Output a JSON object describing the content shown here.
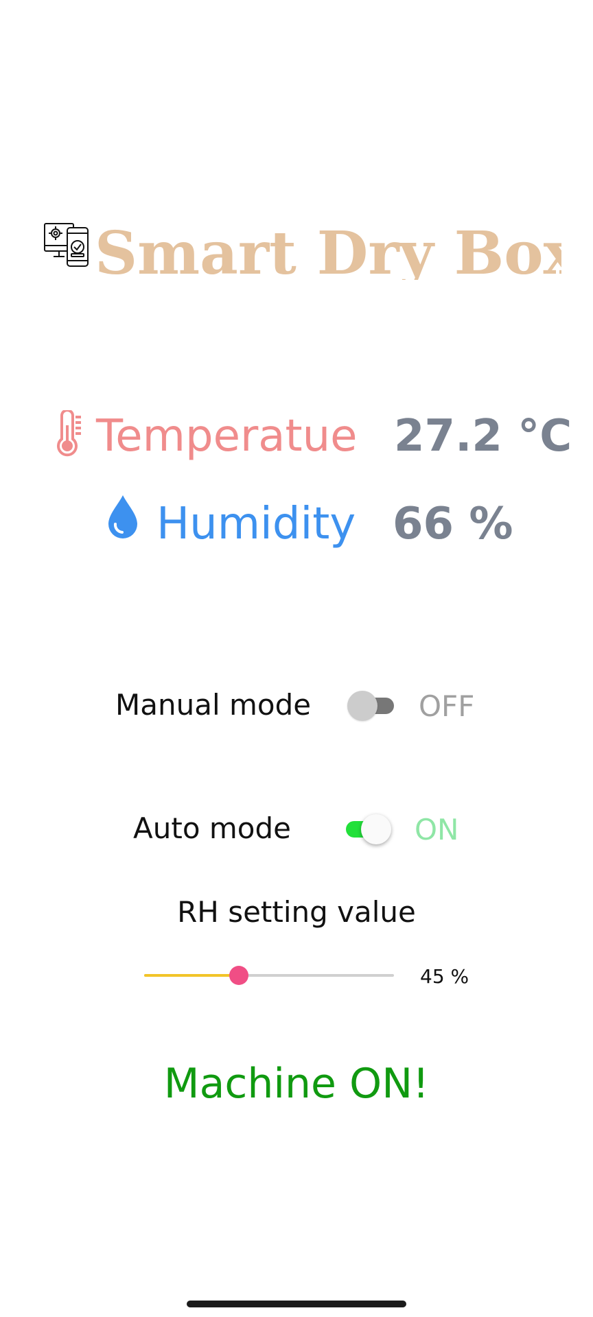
{
  "header": {
    "title": "Smart Dry Box",
    "logo_icon": "smart-device-settings-icon"
  },
  "readings": {
    "temperature": {
      "icon": "thermometer-icon",
      "label": "Temperatue",
      "value": "27.2 °C",
      "label_color": "#f08c8c"
    },
    "humidity": {
      "icon": "water-drop-icon",
      "label": "Humidity",
      "value": "66 %",
      "label_color": "#3d91ef"
    },
    "value_color": "#7a8290"
  },
  "modes": {
    "manual": {
      "label": "Manual mode",
      "state": "OFF",
      "on": false
    },
    "auto": {
      "label": "Auto mode",
      "state": "ON",
      "on": true,
      "accent": "#22e03a"
    }
  },
  "rh_setting": {
    "title": "RH setting value",
    "value": 45,
    "value_text": "45 %",
    "fill_fraction": 0.38,
    "fill_color": "#f2c429",
    "thumb_color": "#f04e85"
  },
  "status": {
    "text": "Machine ON!",
    "color": "#109a10"
  }
}
